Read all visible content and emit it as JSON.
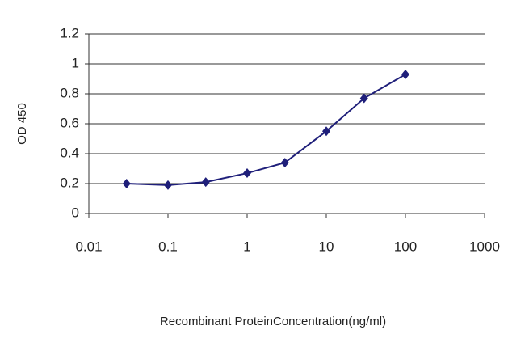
{
  "chart_data": {
    "type": "line",
    "x_label": "Recombinant ProteinConcentration(ng/ml)",
    "y_label": "OD 450",
    "xscale": "log",
    "grid": true,
    "x": [
      0.03,
      0.1,
      0.3,
      1,
      3,
      10,
      30,
      100
    ],
    "series": [
      {
        "name": "OD",
        "color": "#1f1f7a",
        "values": [
          0.2,
          0.19,
          0.21,
          0.27,
          0.34,
          0.55,
          0.77,
          0.93
        ]
      }
    ],
    "xlim": [
      0.01,
      1000
    ],
    "xticks": [
      0.01,
      0.1,
      1,
      10,
      100,
      1000
    ],
    "ylim": [
      0,
      1.2
    ],
    "yticks": [
      0,
      0.2,
      0.4,
      0.6,
      0.8,
      1,
      1.2
    ]
  }
}
